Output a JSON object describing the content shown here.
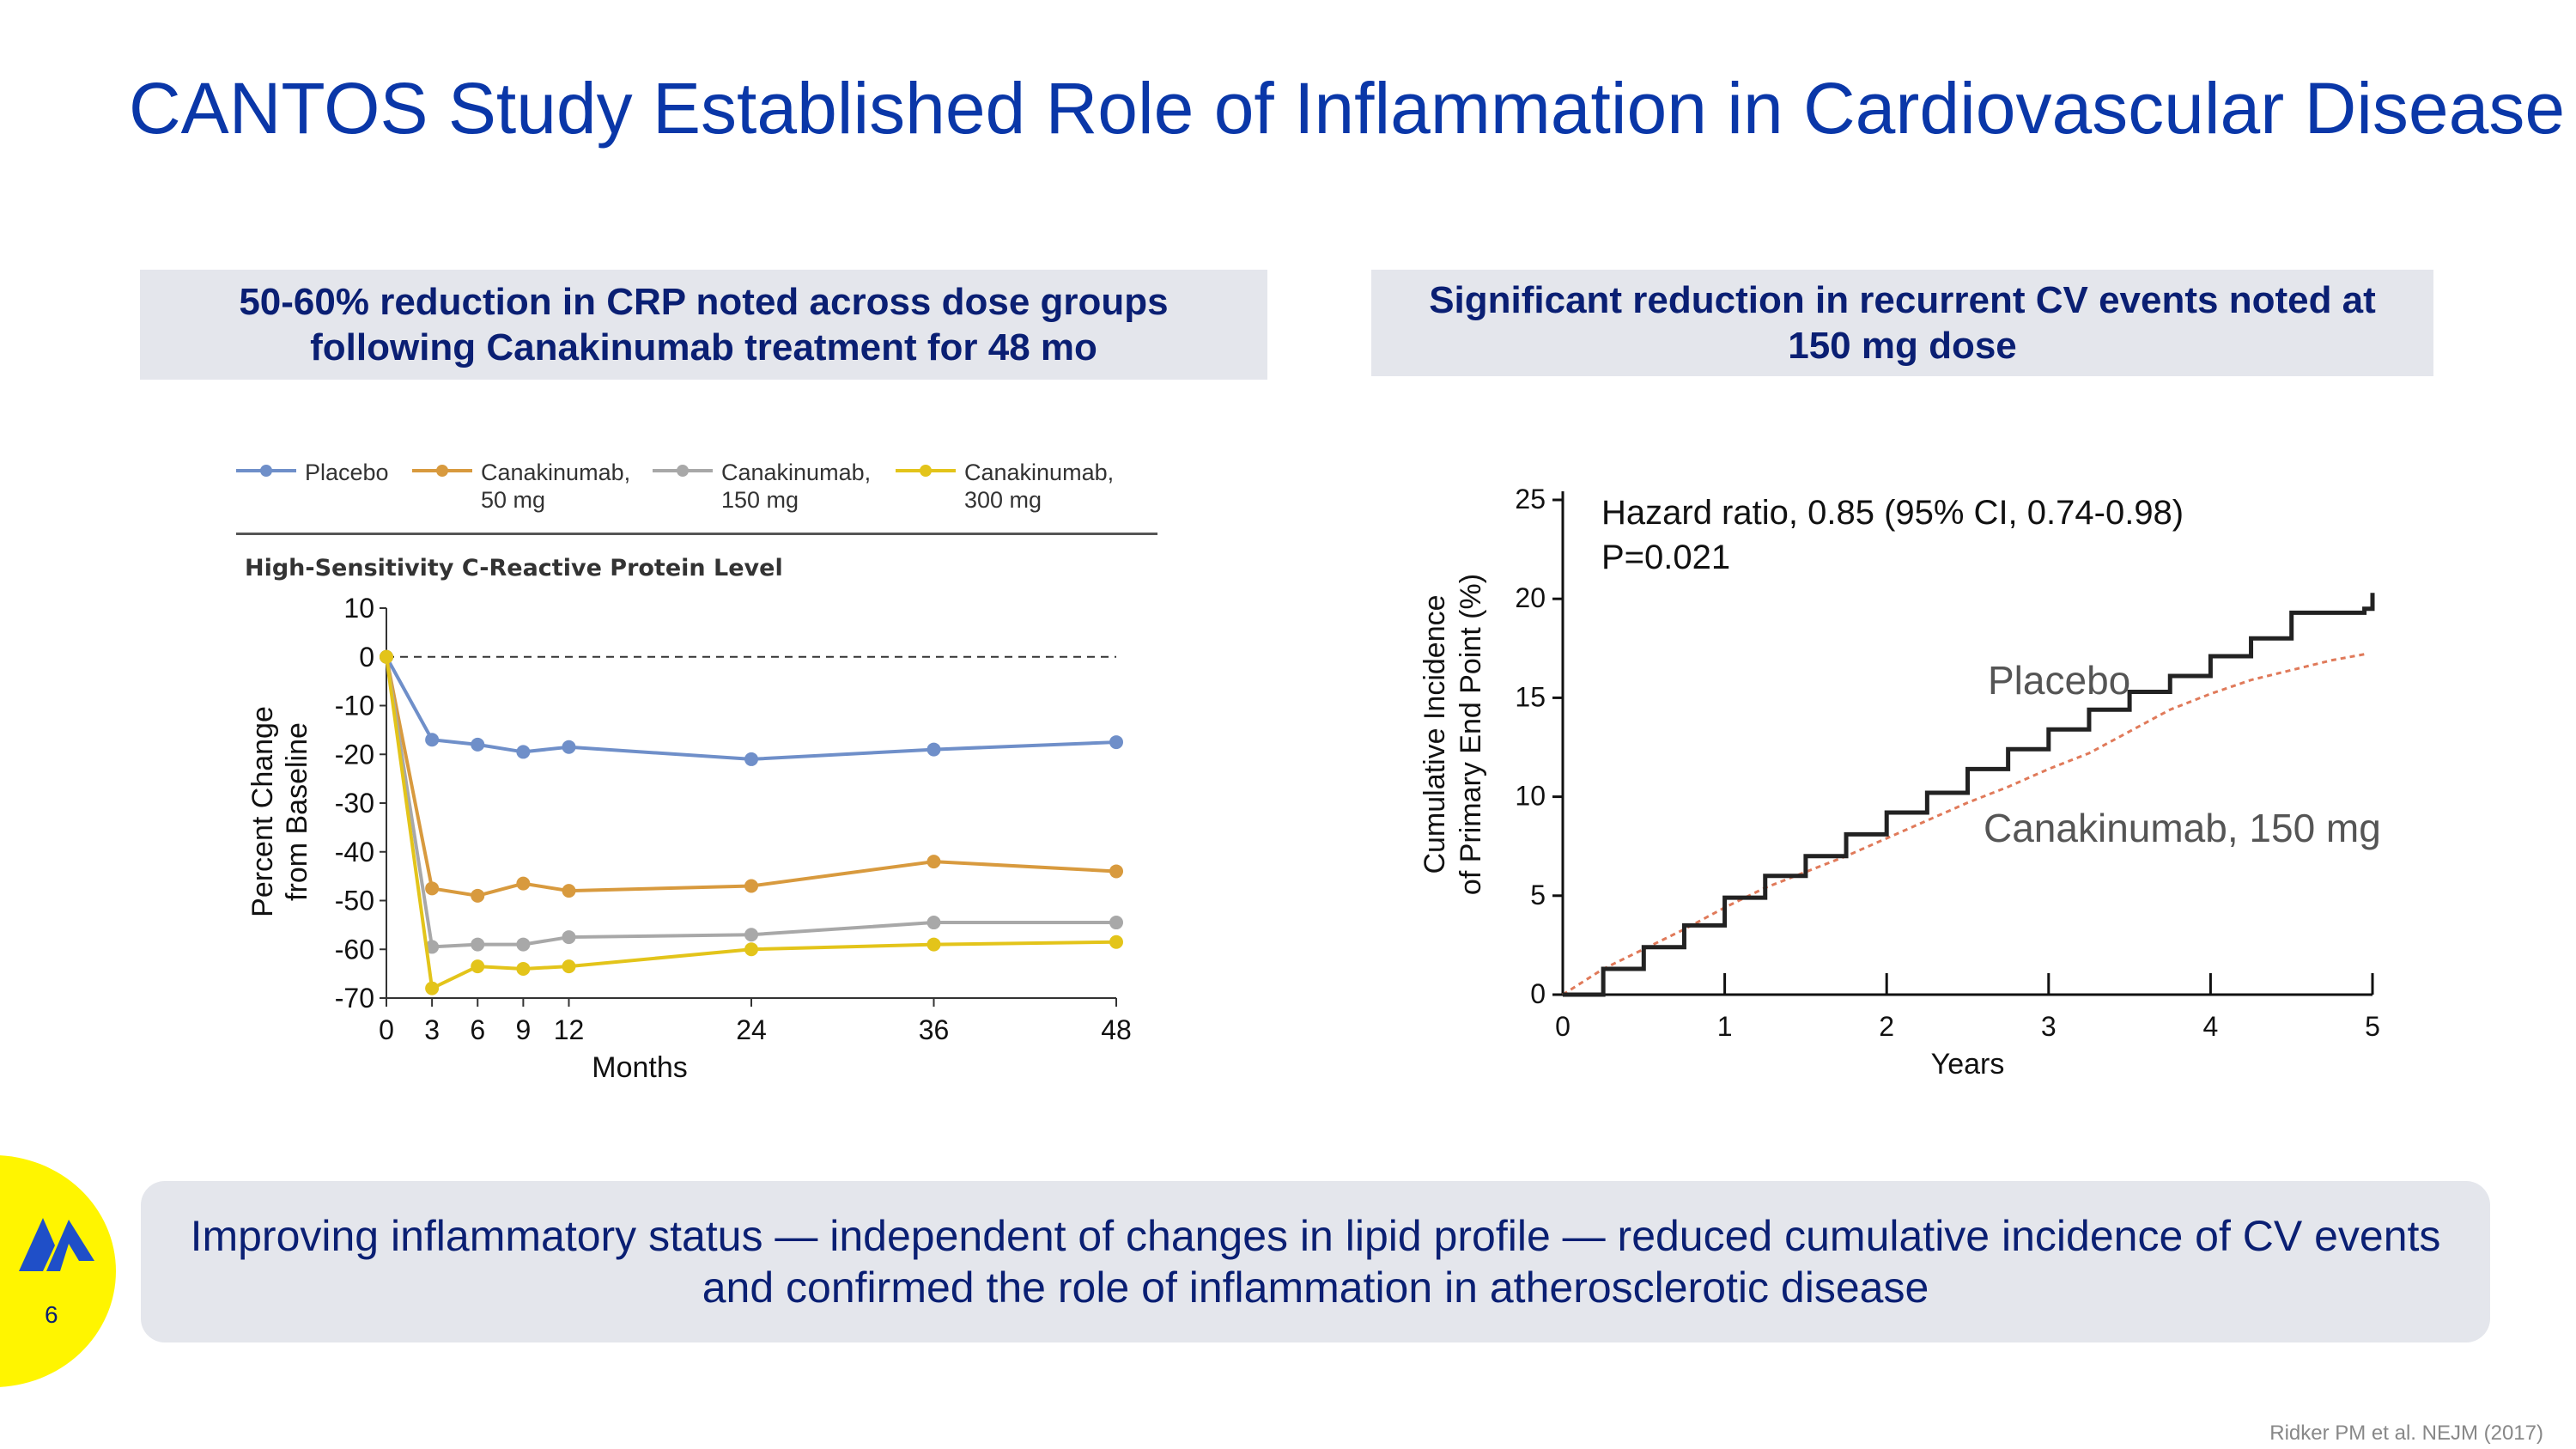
{
  "slide": {
    "title": "CANTOS Study Established Role of Inflammation in Cardiovascular Disease",
    "left_header": [
      "50-60% reduction in CRP noted across dose groups",
      "following Canakinumab treatment for 48 mo"
    ],
    "right_header": [
      "Significant reduction in recurrent CV events noted at",
      "150 mg dose"
    ],
    "summary": [
      "Improving inflammatory status — independent of changes in lipid profile — reduced cumulative incidence of CV events",
      "and confirmed the role of inflammation in atherosclerotic disease"
    ],
    "page_number": "6",
    "citation": "Ridker PM et al. NEJM (2017)"
  },
  "legend": [
    {
      "label": [
        "Placebo"
      ],
      "color": "#6f8fc9"
    },
    {
      "label": [
        "Canakinumab,",
        "50 mg"
      ],
      "color": "#d89a3e"
    },
    {
      "label": [
        "Canakinumab,",
        "150 mg"
      ],
      "color": "#a8a8a8"
    },
    {
      "label": [
        "Canakinumab,",
        "300 mg"
      ],
      "color": "#e3c41a"
    }
  ],
  "colors": {
    "title": "#0a37a8",
    "header_text": "#0a1f73",
    "panel_bg": "#e4e6ec",
    "badge": "#fff500",
    "logo": "#1f4fc8"
  },
  "chart_data": [
    {
      "type": "line",
      "title": "High-Sensitivity C-Reactive Protein Level",
      "xlabel": "Months",
      "ylabel": [
        "Percent Change",
        "from Baseline"
      ],
      "x": [
        0,
        3,
        6,
        9,
        12,
        24,
        36,
        48
      ],
      "xticks": [
        "0",
        "3",
        "6",
        "9",
        "12",
        "24",
        "36",
        "48"
      ],
      "yticks": [
        "10",
        "0",
        "-10",
        "-20",
        "-30",
        "-40",
        "-50",
        "-60",
        "-70"
      ],
      "xlim": [
        0,
        48
      ],
      "ylim": [
        -70,
        10
      ],
      "reference_line": 0,
      "series": [
        {
          "name": "Placebo",
          "color": "#6f8fc9",
          "values": [
            0,
            -17,
            -18,
            -19.5,
            -18.5,
            -21,
            -19,
            -17.5
          ]
        },
        {
          "name": "Canakinumab, 50 mg",
          "color": "#d89a3e",
          "values": [
            0,
            -47.5,
            -49,
            -46.5,
            -48,
            -47,
            -42,
            -44
          ]
        },
        {
          "name": "Canakinumab, 150 mg",
          "color": "#a8a8a8",
          "values": [
            0,
            -59.5,
            -59,
            -59,
            -57.5,
            -57,
            -54.5,
            -54.5
          ]
        },
        {
          "name": "Canakinumab, 300 mg",
          "color": "#e3c41a",
          "values": [
            0,
            -68,
            -63.5,
            -64,
            -63.5,
            -60,
            -59,
            -58.5
          ]
        }
      ]
    },
    {
      "type": "line",
      "title": "",
      "xlabel": "Years",
      "ylabel": [
        "Cumulative Incidence",
        "of Primary End Point (%)"
      ],
      "annotation": [
        "Hazard ratio, 0.85 (95% CI, 0.74-0.98)",
        "P=0.021"
      ],
      "xticks": [
        "0",
        "1",
        "2",
        "3",
        "4",
        "5"
      ],
      "yticks": [
        "0",
        "5",
        "10",
        "15",
        "20",
        "25"
      ],
      "xlim": [
        0,
        5
      ],
      "ylim": [
        0,
        25
      ],
      "series": [
        {
          "name": "Placebo",
          "color": "#222222",
          "style": "solid-step",
          "x": [
            0,
            0.25,
            0.5,
            0.75,
            1,
            1.25,
            1.5,
            1.75,
            2,
            2.25,
            2.5,
            2.75,
            3,
            3.25,
            3.5,
            3.75,
            4,
            4.25,
            4.5,
            4.75,
            4.95,
            5.0
          ],
          "values": [
            0,
            1.3,
            2.4,
            3.5,
            4.9,
            6.0,
            7.0,
            8.1,
            9.2,
            10.2,
            11.4,
            12.4,
            13.4,
            14.4,
            15.3,
            16.1,
            17.1,
            18.0,
            19.3,
            19.3,
            19.5,
            20.3
          ]
        },
        {
          "name": "Canakinumab, 150 mg",
          "color": "#e07a5a",
          "style": "dashed",
          "x": [
            0,
            0.25,
            0.5,
            0.75,
            1,
            1.25,
            1.5,
            1.75,
            2,
            2.25,
            2.5,
            2.75,
            3,
            3.25,
            3.5,
            3.75,
            4,
            4.25,
            4.5,
            4.75,
            4.95
          ],
          "values": [
            0,
            1.3,
            2.3,
            3.3,
            4.4,
            5.4,
            6.2,
            7.0,
            7.9,
            8.8,
            9.7,
            10.5,
            11.4,
            12.2,
            13.3,
            14.4,
            15.2,
            15.9,
            16.4,
            16.9,
            17.2
          ]
        }
      ],
      "series_labels": [
        "Placebo",
        "Canakinumab, 150 mg"
      ]
    }
  ]
}
